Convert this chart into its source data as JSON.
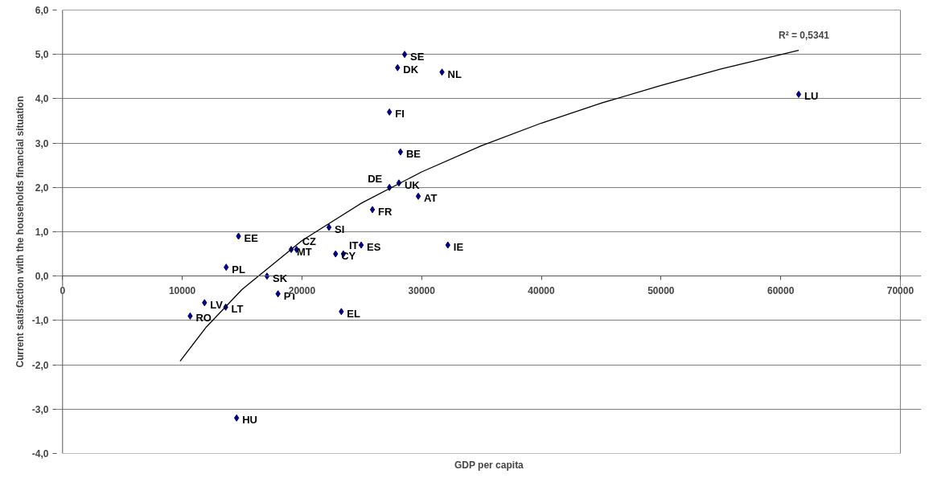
{
  "chart_data": {
    "type": "scatter",
    "xlabel": "GDP per capita",
    "ylabel": "Current satisfaction with the households financial situation",
    "xlim": [
      0,
      70000
    ],
    "ylim": [
      -4,
      6
    ],
    "xticks": [
      0,
      10000,
      20000,
      30000,
      40000,
      50000,
      60000,
      70000
    ],
    "yticks": [
      {
        "value": -4,
        "label": "-4,0"
      },
      {
        "value": -3,
        "label": "-3,0"
      },
      {
        "value": -2,
        "label": "-2,0"
      },
      {
        "value": -1,
        "label": "-1,0"
      },
      {
        "value": 0,
        "label": "0,0"
      },
      {
        "value": 1,
        "label": "1,0"
      },
      {
        "value": 2,
        "label": "2,0"
      },
      {
        "value": 3,
        "label": "3,0"
      },
      {
        "value": 4,
        "label": "4,0"
      },
      {
        "value": 5,
        "label": "5,0"
      },
      {
        "value": 6,
        "label": "6,0"
      }
    ],
    "grid": "y",
    "annotations": [
      {
        "text": "R² = 0,5341",
        "x": 61500,
        "y": 5.09
      }
    ],
    "series": [
      {
        "color": "#000080",
        "marker": "diamond",
        "x": [
          28580,
          27990,
          31700,
          61500,
          27310,
          28230,
          28100,
          27310,
          29720,
          25890,
          22260,
          14700,
          19100,
          19550,
          24950,
          32190,
          22810,
          23460,
          13670,
          17080,
          18000,
          11860,
          13630,
          10660,
          23290,
          14540
        ],
        "values": [
          5.0,
          4.7,
          4.6,
          4.1,
          3.7,
          2.8,
          2.1,
          2.0,
          1.8,
          1.5,
          1.1,
          0.9,
          0.6,
          0.6,
          0.7,
          0.7,
          0.5,
          0.5,
          0.2,
          0.0,
          -0.4,
          -0.6,
          -0.7,
          -0.9,
          -0.8,
          -3.2
        ],
        "value_labels": [
          "SE",
          "DK",
          "NL",
          "LU",
          "FI",
          "BE",
          "UK",
          "DE",
          "AT",
          "FR",
          "SI",
          "EE",
          "MT",
          "CZ",
          "ES",
          "IE",
          "CY",
          "IT",
          "PL",
          "SK",
          "PT",
          "LV",
          "LT",
          "RO",
          "EL",
          "HU"
        ]
      },
      {
        "type": "line",
        "color": "#000000",
        "line_style": "solid",
        "x": [
          9820,
          12000,
          15000,
          20000,
          25000,
          30000,
          35000,
          40000,
          45000,
          50000,
          55000,
          61500
        ],
        "values": [
          -1.92,
          -1.15,
          -0.3,
          0.8,
          1.65,
          2.35,
          2.94,
          3.45,
          3.9,
          4.3,
          4.67,
          5.09
        ]
      }
    ]
  }
}
